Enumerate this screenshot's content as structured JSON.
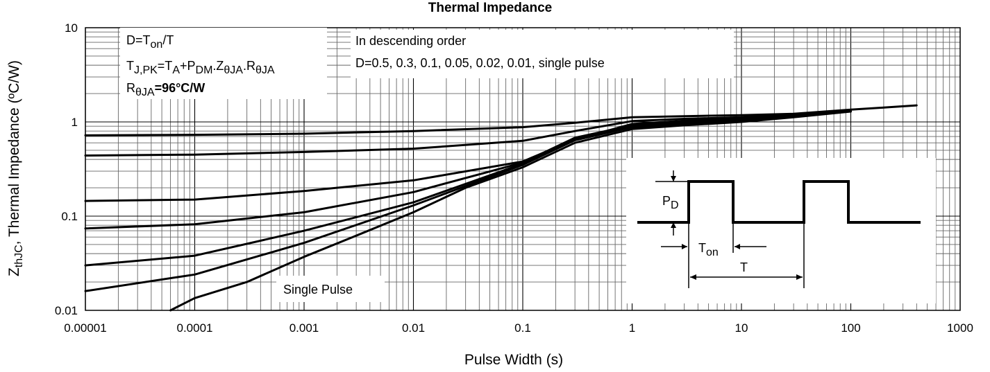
{
  "chart_data": {
    "type": "line",
    "title": "Thermal Impedance",
    "xlabel": "Pulse Width (s)",
    "ylabel": {
      "prefix": "Z",
      "sub": "thJC",
      "suffix": ",  Thermal Impedance (ºC/W)"
    },
    "x_scale": "log",
    "y_scale": "log",
    "xlim": [
      1e-05,
      1000
    ],
    "ylim": [
      0.01,
      10
    ],
    "grid": true,
    "x_ticks": [
      {
        "value": 1e-05,
        "label": "0.00001"
      },
      {
        "value": 0.0001,
        "label": "0.0001"
      },
      {
        "value": 0.001,
        "label": "0.001"
      },
      {
        "value": 0.01,
        "label": "0.01"
      },
      {
        "value": 0.1,
        "label": "0.1"
      },
      {
        "value": 1,
        "label": "1"
      },
      {
        "value": 10,
        "label": "10"
      },
      {
        "value": 100,
        "label": "100"
      },
      {
        "value": 1000,
        "label": "1000"
      }
    ],
    "y_ticks": [
      {
        "value": 0.01,
        "label": "0.01"
      },
      {
        "value": 0.1,
        "label": "0.1"
      },
      {
        "value": 1,
        "label": "1"
      },
      {
        "value": 10,
        "label": "10"
      }
    ],
    "series": [
      {
        "values": [
          [
            1e-05,
            0.72
          ],
          [
            0.0001,
            0.73
          ],
          [
            0.001,
            0.75
          ],
          [
            0.01,
            0.8
          ],
          [
            0.1,
            0.88
          ],
          [
            0.3,
            0.98
          ],
          [
            1,
            1.12
          ],
          [
            3,
            1.15
          ],
          [
            10,
            1.18
          ],
          [
            30,
            1.22
          ],
          [
            100,
            1.35
          ],
          [
            200,
            1.42
          ],
          [
            400,
            1.5
          ]
        ]
      },
      {
        "values": [
          [
            1e-05,
            0.44
          ],
          [
            0.0001,
            0.45
          ],
          [
            0.001,
            0.48
          ],
          [
            0.01,
            0.52
          ],
          [
            0.1,
            0.63
          ],
          [
            0.3,
            0.8
          ],
          [
            1,
            1.02
          ],
          [
            3,
            1.08
          ],
          [
            10,
            1.12
          ],
          [
            30,
            1.2
          ],
          [
            100,
            1.33
          ]
        ]
      },
      {
        "values": [
          [
            1e-05,
            0.145
          ],
          [
            0.0001,
            0.15
          ],
          [
            0.001,
            0.185
          ],
          [
            0.01,
            0.24
          ],
          [
            0.1,
            0.38
          ],
          [
            0.3,
            0.65
          ],
          [
            1,
            0.95
          ],
          [
            3,
            1.03
          ],
          [
            10,
            1.1
          ],
          [
            30,
            1.18
          ],
          [
            100,
            1.32
          ]
        ]
      },
      {
        "values": [
          [
            1e-05,
            0.074
          ],
          [
            0.0001,
            0.082
          ],
          [
            0.001,
            0.11
          ],
          [
            0.01,
            0.18
          ],
          [
            0.1,
            0.37
          ],
          [
            0.3,
            0.68
          ],
          [
            1,
            0.92
          ],
          [
            3,
            0.99
          ],
          [
            10,
            1.06
          ],
          [
            30,
            1.16
          ],
          [
            100,
            1.32
          ]
        ]
      },
      {
        "values": [
          [
            1e-05,
            0.03
          ],
          [
            0.0001,
            0.038
          ],
          [
            0.001,
            0.07
          ],
          [
            0.01,
            0.14
          ],
          [
            0.1,
            0.36
          ],
          [
            0.3,
            0.66
          ],
          [
            1,
            0.9
          ],
          [
            3,
            0.97
          ],
          [
            10,
            1.04
          ],
          [
            30,
            1.15
          ],
          [
            100,
            1.31
          ]
        ]
      },
      {
        "values": [
          [
            1e-05,
            0.016
          ],
          [
            0.0001,
            0.024
          ],
          [
            0.001,
            0.052
          ],
          [
            0.01,
            0.13
          ],
          [
            0.1,
            0.35
          ],
          [
            0.3,
            0.64
          ],
          [
            1,
            0.88
          ],
          [
            3,
            0.95
          ],
          [
            10,
            1.02
          ],
          [
            30,
            1.14
          ],
          [
            100,
            1.3
          ]
        ]
      },
      {
        "values": [
          [
            6e-05,
            0.01
          ],
          [
            0.0001,
            0.0135
          ],
          [
            0.0003,
            0.02
          ],
          [
            0.001,
            0.037
          ],
          [
            0.003,
            0.062
          ],
          [
            0.01,
            0.11
          ],
          [
            0.03,
            0.2
          ],
          [
            0.1,
            0.33
          ],
          [
            0.3,
            0.6
          ],
          [
            1,
            0.84
          ],
          [
            3,
            0.92
          ],
          [
            10,
            1.0
          ],
          [
            30,
            1.12
          ],
          [
            100,
            1.29
          ]
        ]
      }
    ],
    "annotations": {
      "formula_box": {
        "line1": {
          "a": "D=T",
          "sub": "on",
          "b": "/T"
        },
        "line2": {
          "a": "T",
          "sub1": "J,PK",
          "b": "=T",
          "sub2": "A",
          "c": "+P",
          "sub3": "DM",
          "d": ".Z",
          "sub4": "θJA",
          "e": ".R",
          "sub5": "θJA"
        },
        "line3": {
          "a": "R",
          "sub": "θJA",
          "b": "=96°C/W"
        }
      },
      "order_box": {
        "line1": "In descending order",
        "line2": "D=0.5, 0.3, 0.1, 0.05, 0.02, 0.01, single pulse"
      },
      "single_pulse_label": "Single Pulse",
      "pulse_diagram": {
        "pd_label": {
          "a": "P",
          "sub": "D"
        },
        "ton_label": {
          "a": "T",
          "sub": "on"
        },
        "t_label": "T"
      }
    }
  }
}
